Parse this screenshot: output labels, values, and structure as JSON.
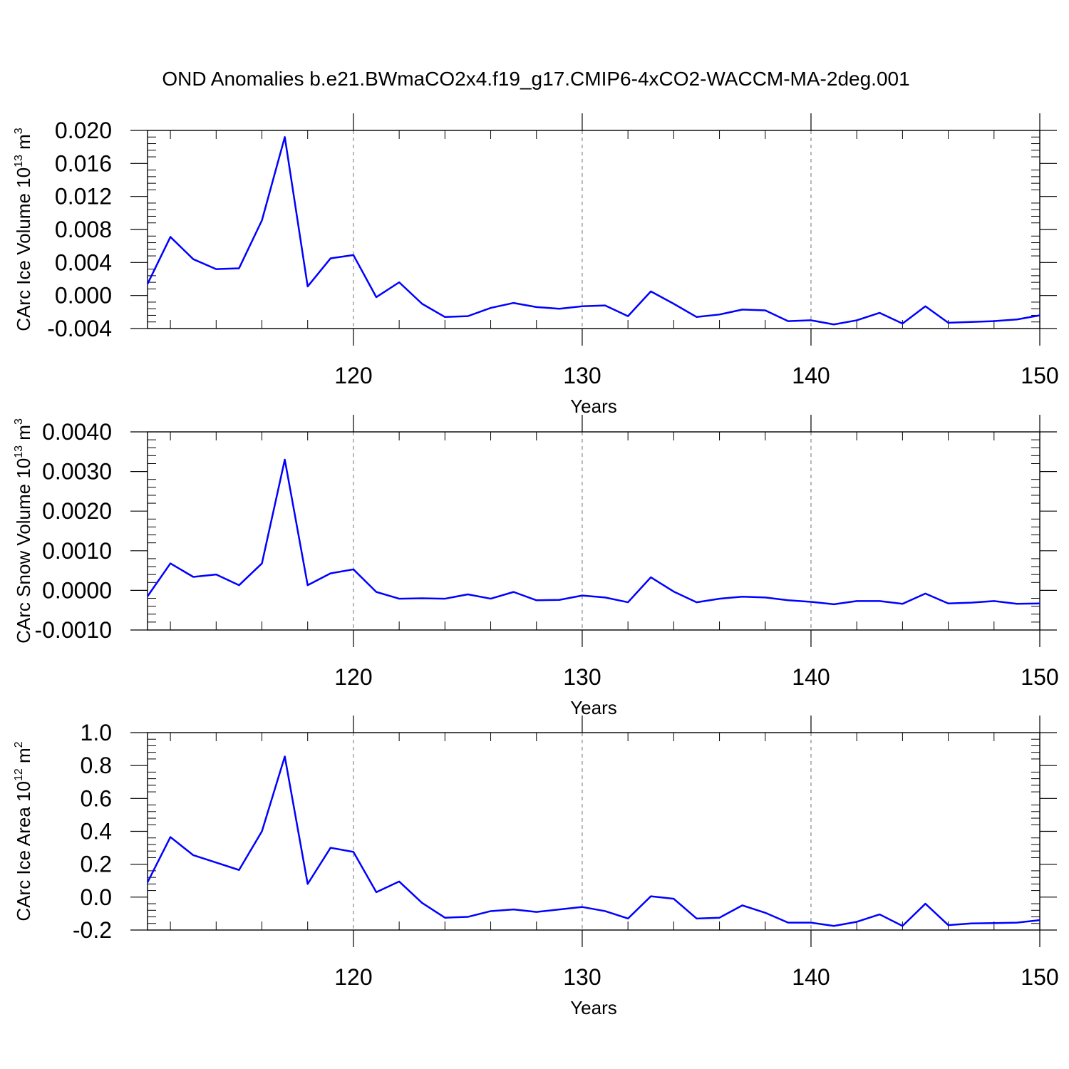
{
  "title": "OND Anomalies b.e21.BWmaCO2x4.f19_g17.CMIP6-4xCO2-WACCM-MA-2deg.001",
  "line_color": "#0000ff",
  "chart_data": [
    {
      "type": "line",
      "ylabel_main": "CArc Ice Volume 10",
      "ylabel_exp": "13",
      "ylabel_unit": "m",
      "ylabel_unit_exp": "3",
      "xlabel": "Years",
      "xlim": [
        111,
        150
      ],
      "ylim": [
        -0.004,
        0.02
      ],
      "yticks": [
        -0.004,
        0.0,
        0.004,
        0.008,
        0.012,
        0.016,
        0.02
      ],
      "ytick_labels": [
        "-0.004",
        "0.000",
        "0.004",
        "0.008",
        "0.012",
        "0.016",
        "0.020"
      ],
      "xticks": [
        120,
        130,
        140,
        150
      ],
      "xtick_labels": [
        "120",
        "130",
        "140",
        "150"
      ],
      "x": [
        111,
        112,
        113,
        114,
        115,
        116,
        117,
        118,
        119,
        120,
        121,
        122,
        123,
        124,
        125,
        126,
        127,
        128,
        129,
        130,
        131,
        132,
        133,
        134,
        135,
        136,
        137,
        138,
        139,
        140,
        141,
        142,
        143,
        144,
        145,
        146,
        147,
        148,
        149,
        150
      ],
      "values": [
        0.0014,
        0.0071,
        0.0044,
        0.0032,
        0.0033,
        0.0091,
        0.0192,
        0.0011,
        0.0045,
        0.0049,
        -0.0002,
        0.0016,
        -0.001,
        -0.0026,
        -0.0025,
        -0.0015,
        -0.0009,
        -0.0014,
        -0.0016,
        -0.0013,
        -0.0012,
        -0.0025,
        0.0005,
        -0.001,
        -0.0026,
        -0.0023,
        -0.0017,
        -0.0018,
        -0.0031,
        -0.003,
        -0.0035,
        -0.003,
        -0.0021,
        -0.0034,
        -0.0013,
        -0.0033,
        -0.0032,
        -0.0031,
        -0.0029,
        -0.0024
      ]
    },
    {
      "type": "line",
      "ylabel_main": "CArc Snow Volume 10",
      "ylabel_exp": "13",
      "ylabel_unit": "m",
      "ylabel_unit_exp": "3",
      "xlabel": "Years",
      "xlim": [
        111,
        150
      ],
      "ylim": [
        -0.001,
        0.004
      ],
      "yticks": [
        -0.001,
        0.0,
        0.001,
        0.002,
        0.003,
        0.004
      ],
      "ytick_labels": [
        "-0.0010",
        "0.0000",
        "0.0010",
        "0.0020",
        "0.0030",
        "0.0040"
      ],
      "xticks": [
        120,
        130,
        140,
        150
      ],
      "xtick_labels": [
        "120",
        "130",
        "140",
        "150"
      ],
      "x": [
        111,
        112,
        113,
        114,
        115,
        116,
        117,
        118,
        119,
        120,
        121,
        122,
        123,
        124,
        125,
        126,
        127,
        128,
        129,
        130,
        131,
        132,
        133,
        134,
        135,
        136,
        137,
        138,
        139,
        140,
        141,
        142,
        143,
        144,
        145,
        146,
        147,
        148,
        149,
        150
      ],
      "values": [
        -0.00015,
        0.00068,
        0.00034,
        0.0004,
        0.00013,
        0.00068,
        0.0033,
        0.00013,
        0.00043,
        0.00053,
        -4e-05,
        -0.00021,
        -0.0002,
        -0.00021,
        -0.0001,
        -0.00021,
        -4e-05,
        -0.00025,
        -0.00024,
        -0.00013,
        -0.00018,
        -0.0003,
        0.00033,
        -3e-05,
        -0.0003,
        -0.00021,
        -0.00016,
        -0.00018,
        -0.00025,
        -0.00029,
        -0.00035,
        -0.00027,
        -0.00027,
        -0.00034,
        -8e-05,
        -0.00033,
        -0.00031,
        -0.00027,
        -0.00034,
        -0.00033
      ]
    },
    {
      "type": "line",
      "ylabel_main": "CArc Ice Area 10",
      "ylabel_exp": "12",
      "ylabel_unit": "m",
      "ylabel_unit_exp": "2",
      "xlabel": "Years",
      "xlim": [
        111,
        150
      ],
      "ylim": [
        -0.2,
        1.0
      ],
      "yticks": [
        -0.2,
        0.0,
        0.2,
        0.4,
        0.6,
        0.8,
        1.0
      ],
      "ytick_labels": [
        "-0.2",
        "0.0",
        "0.2",
        "0.4",
        "0.6",
        "0.8",
        "1.0"
      ],
      "xticks": [
        120,
        130,
        140,
        150
      ],
      "xtick_labels": [
        "120",
        "130",
        "140",
        "150"
      ],
      "x": [
        111,
        112,
        113,
        114,
        115,
        116,
        117,
        118,
        119,
        120,
        121,
        122,
        123,
        124,
        125,
        126,
        127,
        128,
        129,
        130,
        131,
        132,
        133,
        134,
        135,
        136,
        137,
        138,
        139,
        140,
        141,
        142,
        143,
        144,
        145,
        146,
        147,
        148,
        149,
        150
      ],
      "values": [
        0.09,
        0.365,
        0.255,
        0.21,
        0.165,
        0.4,
        0.855,
        0.08,
        0.3,
        0.275,
        0.03,
        0.095,
        -0.035,
        -0.125,
        -0.12,
        -0.085,
        -0.075,
        -0.09,
        -0.075,
        -0.06,
        -0.085,
        -0.13,
        0.005,
        -0.01,
        -0.13,
        -0.125,
        -0.05,
        -0.095,
        -0.155,
        -0.155,
        -0.175,
        -0.15,
        -0.105,
        -0.175,
        -0.04,
        -0.17,
        -0.16,
        -0.158,
        -0.155,
        -0.14
      ]
    }
  ]
}
